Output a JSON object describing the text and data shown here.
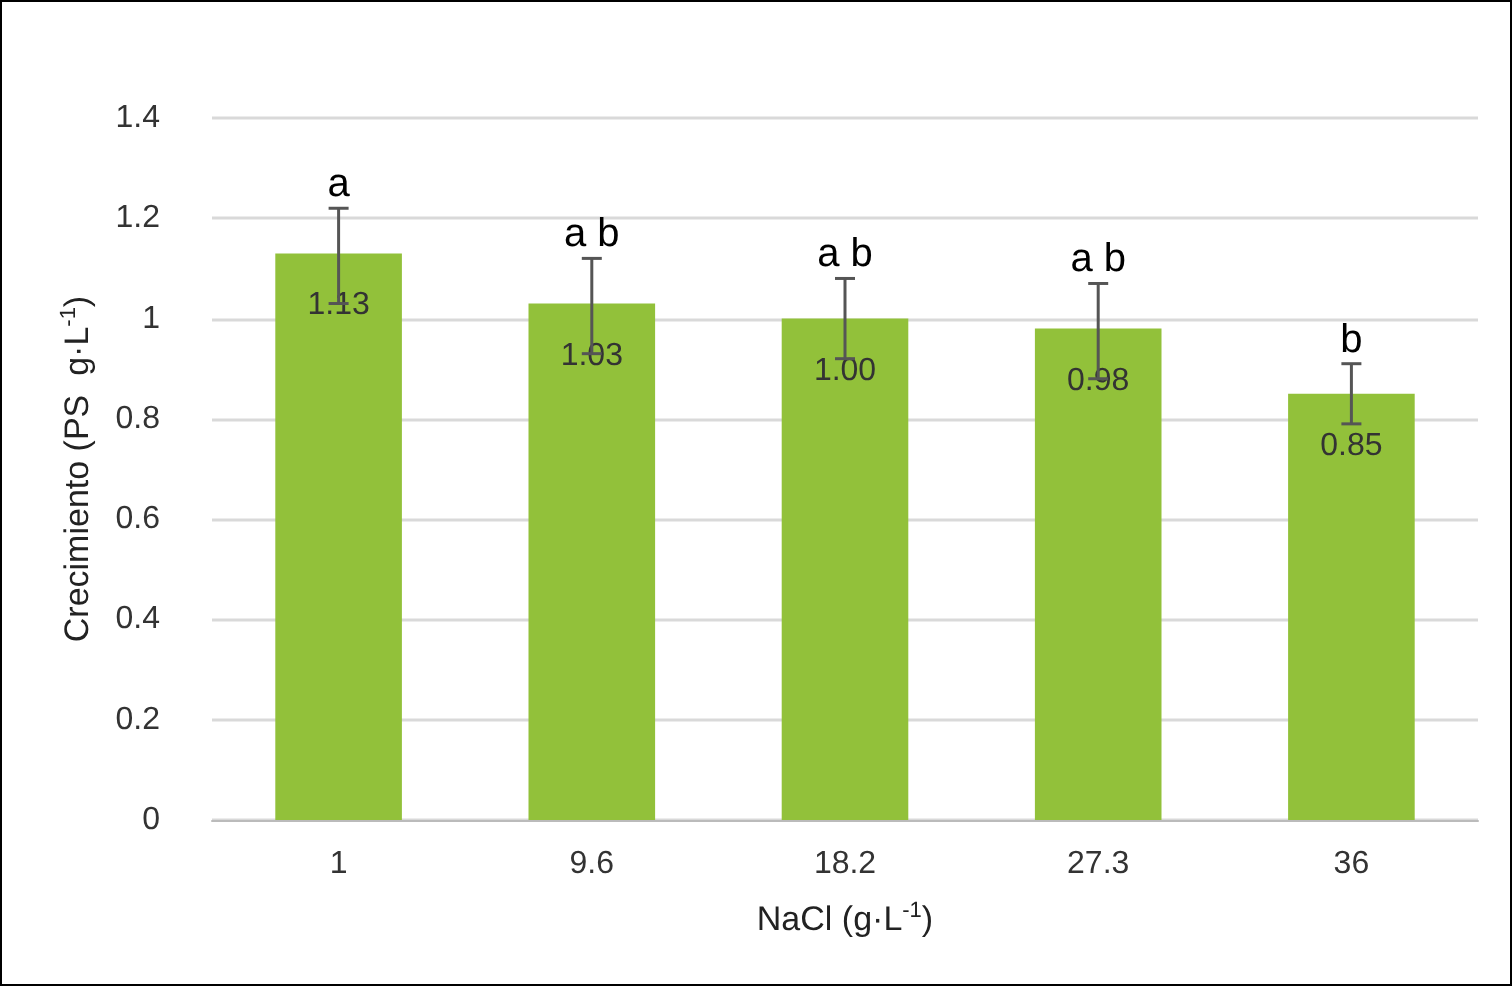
{
  "chart_data": {
    "type": "bar",
    "categories": [
      "1",
      "9.6",
      "18.2",
      "27.3",
      "36"
    ],
    "values": [
      1.13,
      1.03,
      1.0,
      0.98,
      0.85
    ],
    "value_labels": [
      "1.13",
      "1.03",
      "1.00",
      "0.98",
      "0.85"
    ],
    "errors": [
      [
        1.03,
        1.22
      ],
      [
        0.93,
        1.12
      ],
      [
        0.92,
        1.08
      ],
      [
        0.88,
        1.07
      ],
      [
        0.79,
        0.91
      ]
    ],
    "color": "#92c13a",
    "xlabel": "NaCl (g·L$^{-1}$)",
    "ylabel": "Crecimiento (PS  g·L$^{-1}$)",
    "ylim": [
      0,
      1.4
    ],
    "yticks": [
      0,
      0.2,
      0.4,
      0.6,
      0.8,
      1,
      1.2,
      1.4
    ],
    "grid": "y",
    "annotations": [
      {
        "text": "a",
        "x": "1",
        "y": 1.22
      },
      {
        "text": "a b",
        "x": "9.6",
        "y": 1.12
      },
      {
        "text": "a b",
        "x": "18.2",
        "y": 1.08
      },
      {
        "text": "a b",
        "x": "27.3",
        "y": 1.07
      },
      {
        "text": "b",
        "x": "36",
        "y": 0.91
      }
    ]
  }
}
